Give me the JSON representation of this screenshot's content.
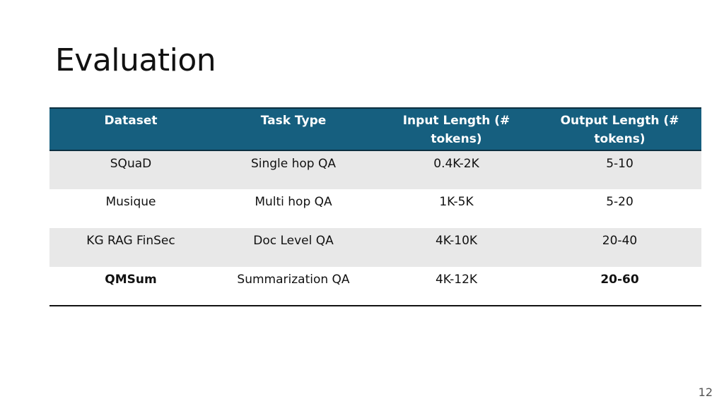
{
  "slide": {
    "title": "Evaluation",
    "page_number": "12"
  },
  "table": {
    "headers": [
      "Dataset",
      "Task Type",
      "Input Length (# tokens)",
      "Output Length (# tokens)"
    ],
    "rows": [
      [
        "SQuaD",
        "Single hop QA",
        "0.4K-2K",
        "5-10"
      ],
      [
        "Musique",
        "Multi hop QA",
        "1K-5K",
        "5-20"
      ],
      [
        "KG RAG FinSec",
        "Doc Level QA",
        "4K-10K",
        "20-40"
      ],
      [
        "QMSum",
        "Summarization QA",
        "4K-12K",
        "20-60"
      ]
    ]
  },
  "colors": {
    "header_bg": "#165f7f",
    "shaded_row": "#e8e8e8"
  }
}
